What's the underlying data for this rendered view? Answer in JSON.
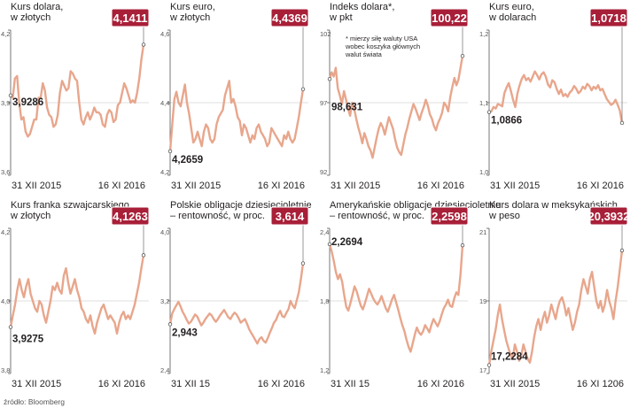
{
  "colors": {
    "line": "#e8a68c",
    "badge": "#a81f38",
    "grid": "#bfbfbf",
    "axis": "#555555"
  },
  "source": "źródło: Bloomberg",
  "chart_data": [
    {
      "type": "line",
      "title": [
        "Kurs dolara,",
        "w złotych"
      ],
      "ylim": [
        3.6,
        4.2
      ],
      "yticks": [
        "4,2",
        "3,9",
        "3,6"
      ],
      "x_start_label": "31 XII 2015",
      "x_end_label": "16 XI 2016",
      "start_label": "3,9286",
      "end_label": "4,1411",
      "values": [
        3.93,
        3.92,
        4.0,
        4.01,
        3.9,
        3.83,
        3.84,
        3.78,
        3.76,
        3.77,
        3.8,
        3.83,
        3.83,
        3.92,
        3.92,
        3.98,
        3.95,
        3.88,
        3.85,
        3.84,
        3.8,
        3.81,
        3.85,
        3.94,
        3.99,
        3.97,
        3.95,
        3.96,
        4.03,
        4.02,
        4.0,
        3.99,
        3.9,
        3.83,
        3.81,
        3.84,
        3.86,
        3.83,
        3.85,
        3.88,
        3.86,
        3.86,
        3.85,
        3.81,
        3.8,
        3.85,
        3.87,
        3.86,
        3.82,
        3.83,
        3.89,
        3.9,
        3.94,
        3.98,
        3.96,
        3.93,
        3.9,
        3.91,
        3.9,
        3.94,
        4.0,
        4.08,
        4.14
      ]
    },
    {
      "type": "line",
      "title": [
        "Kurs euro,",
        "w złotych"
      ],
      "ylim": [
        4.2,
        4.6
      ],
      "yticks": [
        "4,6",
        "4,4",
        "4,2"
      ],
      "x_start_label": "31 XII 2015",
      "x_end_label": "16 XI 2016",
      "start_label": "4,2659",
      "end_label": "4,4369",
      "values": [
        4.266,
        4.34,
        4.41,
        4.43,
        4.4,
        4.39,
        4.42,
        4.45,
        4.4,
        4.37,
        4.33,
        4.29,
        4.3,
        4.32,
        4.3,
        4.28,
        4.32,
        4.34,
        4.33,
        4.3,
        4.29,
        4.3,
        4.34,
        4.36,
        4.37,
        4.38,
        4.42,
        4.44,
        4.46,
        4.4,
        4.41,
        4.39,
        4.36,
        4.35,
        4.31,
        4.34,
        4.33,
        4.31,
        4.29,
        4.31,
        4.3,
        4.33,
        4.34,
        4.32,
        4.31,
        4.3,
        4.28,
        4.29,
        4.33,
        4.32,
        4.31,
        4.3,
        4.29,
        4.28,
        4.31,
        4.3,
        4.32,
        4.3,
        4.29,
        4.3,
        4.33,
        4.36,
        4.4,
        4.437
      ]
    },
    {
      "type": "line",
      "title": [
        "Indeks dolara*,",
        "w pkt"
      ],
      "note": [
        "* mierzy siłę waluty USA",
        "wobec koszyka głównych",
        "walut świata"
      ],
      "ylim": [
        92,
        102
      ],
      "yticks": [
        "102",
        "97",
        "92"
      ],
      "x_start_label": "31 XII 2015",
      "x_end_label": "16 XI 2016",
      "start_label": "98,631",
      "end_label": "100,22",
      "values": [
        98.63,
        99.1,
        98.8,
        99.4,
        98.0,
        97.5,
        96.9,
        97.8,
        97.2,
        96.6,
        96.1,
        97.0,
        96.6,
        95.9,
        95.3,
        94.8,
        94.2,
        94.9,
        94.5,
        94.0,
        93.7,
        93.2,
        93.9,
        94.6,
        95.2,
        95.6,
        95.3,
        94.8,
        95.4,
        96.0,
        95.6,
        95.2,
        94.5,
        93.9,
        93.6,
        93.4,
        94.1,
        94.8,
        95.3,
        95.9,
        96.4,
        96.9,
        96.6,
        96.2,
        95.8,
        96.3,
        96.7,
        97.2,
        96.8,
        96.2,
        95.9,
        95.4,
        95.1,
        95.6,
        95.9,
        96.3,
        97.0,
        96.8,
        96.4,
        97.4,
        98.1,
        98.7,
        98.2,
        98.6,
        99.4,
        100.22
      ]
    },
    {
      "type": "line",
      "title": [
        "Kurs euro,",
        "w dolarach"
      ],
      "ylim": [
        1.0,
        1.2
      ],
      "yticks": [
        "1,2",
        "1,1",
        "1,0"
      ],
      "x_start_label": "31 XII 2015",
      "x_end_label": "16 XI 2016",
      "start_label": "1,0866",
      "end_label": "1,0718",
      "values": [
        1.087,
        1.088,
        1.094,
        1.092,
        1.098,
        1.097,
        1.095,
        1.113,
        1.121,
        1.127,
        1.116,
        1.104,
        1.094,
        1.113,
        1.124,
        1.133,
        1.138,
        1.131,
        1.134,
        1.129,
        1.136,
        1.143,
        1.138,
        1.132,
        1.139,
        1.142,
        1.136,
        1.125,
        1.121,
        1.131,
        1.128,
        1.119,
        1.112,
        1.118,
        1.109,
        1.112,
        1.108,
        1.114,
        1.117,
        1.123,
        1.119,
        1.113,
        1.116,
        1.122,
        1.119,
        1.126,
        1.123,
        1.117,
        1.122,
        1.119,
        1.124,
        1.117,
        1.119,
        1.112,
        1.105,
        1.101,
        1.097,
        1.099,
        1.104,
        1.097,
        1.089,
        1.072
      ]
    },
    {
      "type": "line",
      "title": [
        "Kurs franka szwajcarskiego,",
        "w złotych"
      ],
      "ylim": [
        3.8,
        4.2
      ],
      "yticks": [
        "4,2",
        "4,0",
        "3,8"
      ],
      "x_start_label": "31 XII 2015",
      "x_end_label": "16 XI 2016",
      "start_label": "3,9275",
      "end_label": "4,1263",
      "values": [
        3.928,
        3.96,
        3.99,
        4.03,
        4.06,
        4.03,
        4.01,
        4.04,
        4.06,
        4.02,
        4.0,
        3.98,
        3.97,
        4.0,
        3.99,
        3.96,
        3.94,
        3.97,
        4.0,
        4.04,
        4.03,
        4.05,
        4.03,
        4.02,
        4.07,
        4.09,
        4.05,
        4.02,
        4.04,
        4.06,
        4.03,
        4.01,
        3.98,
        3.97,
        3.95,
        3.94,
        3.96,
        3.93,
        3.91,
        3.94,
        3.96,
        3.98,
        3.99,
        3.97,
        3.95,
        3.96,
        3.95,
        3.94,
        3.91,
        3.94,
        3.96,
        3.97,
        3.95,
        3.96,
        3.95,
        3.97,
        3.99,
        4.02,
        4.05,
        4.09,
        4.126
      ]
    },
    {
      "type": "line",
      "title": [
        "Polskie obligacje dziesięcioletnie",
        "– rentowność, w proc."
      ],
      "ylim": [
        2.4,
        4.0
      ],
      "yticks": [
        "4,0",
        "3,2",
        "2,4"
      ],
      "x_start_label": "31 XII 15",
      "x_end_label": "16 XI 2016",
      "start_label": "2,943",
      "end_label": "3,614",
      "values": [
        2.943,
        3.06,
        3.11,
        3.15,
        3.19,
        3.14,
        3.08,
        3.04,
        2.99,
        2.95,
        2.97,
        3.01,
        3.05,
        3.03,
        2.98,
        2.93,
        2.96,
        3.0,
        3.03,
        3.06,
        3.04,
        3.0,
        2.97,
        3.0,
        3.04,
        3.07,
        3.1,
        3.06,
        3.02,
        3.0,
        3.04,
        3.07,
        3.05,
        3.01,
        2.96,
        2.98,
        3.0,
        2.95,
        2.89,
        2.85,
        2.81,
        2.77,
        2.73,
        2.78,
        2.8,
        2.76,
        2.74,
        2.79,
        2.85,
        2.9,
        2.96,
        2.99,
        3.05,
        3.09,
        3.03,
        3.02,
        3.07,
        3.11,
        3.2,
        3.15,
        3.12,
        3.21,
        3.3,
        3.45,
        3.614
      ]
    },
    {
      "type": "line",
      "title": [
        "Amerykańskie obligacje dziesięcioletnie",
        "– rentowność, w proc."
      ],
      "ylim": [
        1.2,
        2.4
      ],
      "yticks": [
        "2,4",
        "1,8",
        "1,2"
      ],
      "x_start_label": "31 XII 15",
      "x_end_label": "16 XI 2016",
      "start_label": "2,2694",
      "end_label": "2,2598",
      "values": [
        2.269,
        2.21,
        2.13,
        2.04,
        1.98,
        2.02,
        1.96,
        1.85,
        1.75,
        1.72,
        1.78,
        1.85,
        1.92,
        1.88,
        1.82,
        1.76,
        1.73,
        1.78,
        1.84,
        1.9,
        1.86,
        1.82,
        1.79,
        1.77,
        1.8,
        1.84,
        1.79,
        1.74,
        1.71,
        1.76,
        1.81,
        1.85,
        1.79,
        1.73,
        1.66,
        1.6,
        1.55,
        1.48,
        1.42,
        1.38,
        1.45,
        1.52,
        1.58,
        1.54,
        1.52,
        1.55,
        1.6,
        1.57,
        1.54,
        1.6,
        1.65,
        1.62,
        1.59,
        1.63,
        1.69,
        1.74,
        1.77,
        1.81,
        1.76,
        1.75,
        1.82,
        1.87,
        1.85,
        2.02,
        2.26
      ]
    },
    {
      "type": "line",
      "title": [
        "Kurs dolara w meksykańskich,",
        "w peso"
      ],
      "ylim": [
        17,
        21
      ],
      "yticks": [
        "21",
        "19",
        "17"
      ],
      "x_start_label": "31 XII 2015",
      "x_end_label": "16 XI 1206",
      "start_label": "17,2284",
      "end_label": "20,3932",
      "values": [
        17.23,
        17.6,
        17.9,
        18.2,
        18.6,
        18.9,
        18.5,
        18.2,
        17.9,
        17.7,
        17.5,
        17.4,
        17.8,
        17.6,
        17.35,
        17.5,
        17.8,
        17.6,
        17.4,
        17.3,
        17.6,
        18.0,
        18.3,
        18.5,
        18.2,
        18.5,
        18.7,
        18.4,
        18.6,
        18.9,
        18.7,
        18.5,
        18.8,
        19.0,
        19.1,
        18.9,
        18.6,
        18.8,
        18.5,
        18.2,
        18.4,
        18.7,
        18.9,
        19.3,
        19.6,
        19.4,
        19.2,
        19.6,
        19.8,
        19.4,
        19.0,
        18.8,
        19.0,
        18.7,
        18.9,
        19.3,
        19.0,
        18.8,
        18.5,
        19.0,
        19.4,
        19.9,
        20.39
      ]
    }
  ]
}
